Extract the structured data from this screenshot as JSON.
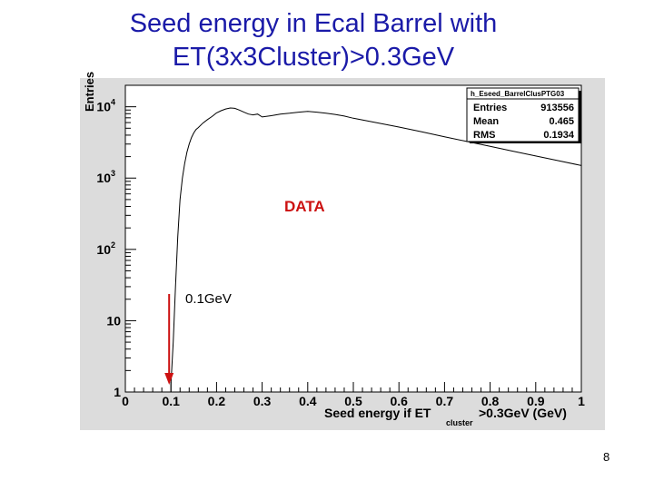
{
  "slide": {
    "title_line1": "Seed energy in Ecal Barrel with",
    "title_line2": "ET(3x3Cluster)>0.3GeV",
    "page_number": "8"
  },
  "stats_box": {
    "name": "h_Eseed_BarrelClusPTG03",
    "rows": [
      {
        "label": "Entries",
        "value": "913556"
      },
      {
        "label": "Mean",
        "value": "0.465"
      },
      {
        "label": "RMS",
        "value": "0.1934"
      }
    ]
  },
  "annotations": {
    "data_label": "DATA",
    "threshold_label": "0.1GeV",
    "threshold_x": 0.1
  },
  "colors": {
    "title": "#1a1aa8",
    "data_label": "#cc1111",
    "arrow": "#cc1111",
    "histogram": "#000000",
    "frame": "#dcdcdc"
  },
  "chart_data": {
    "type": "line",
    "title": "",
    "xlabel": "Seed energy if ET",
    "xlabel_subscript": "cluster",
    "xlabel_suffix": ">0.3GeV (GeV)",
    "ylabel": "Entries",
    "xlim": [
      0,
      1
    ],
    "ylim": [
      1,
      20000
    ],
    "y_scale": "log",
    "grid": false,
    "x_ticks": [
      "0",
      "0.1",
      "0.2",
      "0.3",
      "0.4",
      "0.5",
      "0.6",
      "0.7",
      "0.8",
      "0.9",
      "1"
    ],
    "y_ticks": [
      {
        "base": "1",
        "exp": ""
      },
      {
        "base": "10",
        "exp": ""
      },
      {
        "base": "10",
        "exp": "2"
      },
      {
        "base": "10",
        "exp": "3"
      },
      {
        "base": "10",
        "exp": "4"
      }
    ],
    "series": [
      {
        "x": [
          0.0,
          0.095,
          0.1,
          0.105,
          0.11,
          0.115,
          0.12,
          0.125,
          0.13,
          0.135,
          0.14,
          0.145,
          0.15,
          0.155,
          0.16,
          0.17,
          0.18,
          0.19,
          0.2,
          0.21,
          0.22,
          0.23,
          0.24,
          0.25,
          0.26,
          0.27,
          0.28,
          0.29,
          0.3,
          0.32,
          0.34,
          0.36,
          0.38,
          0.4,
          0.42,
          0.44,
          0.46,
          0.48,
          0.5,
          0.55,
          0.6,
          0.65,
          0.7,
          0.75,
          0.8,
          0.85,
          0.9,
          0.95,
          1.0
        ],
        "y": [
          0,
          0,
          1.3,
          5,
          30,
          150,
          500,
          1000,
          1600,
          2300,
          3000,
          3700,
          4300,
          4800,
          5100,
          5900,
          6600,
          7300,
          8200,
          8800,
          9300,
          9600,
          9500,
          9000,
          8400,
          7900,
          7700,
          7900,
          7200,
          7500,
          7900,
          8100,
          8400,
          8600,
          8400,
          8100,
          7800,
          7400,
          6900,
          6000,
          5200,
          4450,
          3800,
          3250,
          2780,
          2380,
          2040,
          1750,
          1500
        ]
      }
    ]
  }
}
